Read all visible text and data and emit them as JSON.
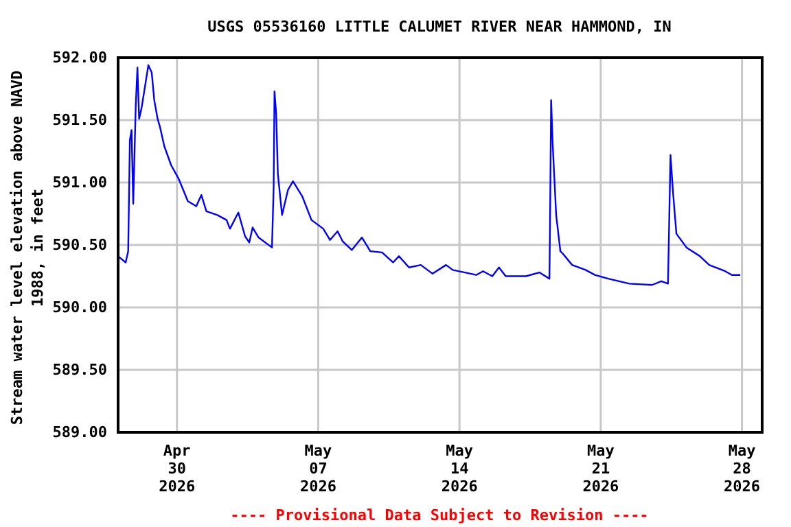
{
  "chart_data": {
    "type": "line",
    "title": "USGS 05536160 LITTLE CALUMET RIVER NEAR HAMMOND, IN",
    "ylabel": "Stream water level elevation above NAVD\n1988, in feet",
    "annotations": [
      "---- Provisional Data Subject to Revision ----"
    ],
    "xlim": [
      "2026-04-27T02:00",
      "2026-05-29T00:00"
    ],
    "xticks": [
      {
        "value": "2026-04-30",
        "label": "Apr\n30\n2026"
      },
      {
        "value": "2026-05-07",
        "label": "May\n07\n2026"
      },
      {
        "value": "2026-05-14",
        "label": "May\n14\n2026"
      },
      {
        "value": "2026-05-21",
        "label": "May\n21\n2026"
      },
      {
        "value": "2026-05-28",
        "label": "May\n28\n2026"
      }
    ],
    "ylim": [
      589,
      592
    ],
    "yticks": [
      {
        "value": 589,
        "label": "589.00"
      },
      {
        "value": 589.5,
        "label": "589.50"
      },
      {
        "value": 590,
        "label": "590.00"
      },
      {
        "value": 590.5,
        "label": "590.50"
      },
      {
        "value": 591,
        "label": "591.00"
      },
      {
        "value": 591.5,
        "label": "591.50"
      },
      {
        "value": 592,
        "label": "592.00"
      }
    ],
    "grid": true,
    "marker": "none",
    "line_style": "solid",
    "x": [
      "2026-04-27T02:00",
      "2026-04-27T11:00",
      "2026-04-27T14:00",
      "2026-04-27T16:00",
      "2026-04-27T18:00",
      "2026-04-27T20:00",
      "2026-04-27T23:00",
      "2026-04-28T01:00",
      "2026-04-28T03:00",
      "2026-04-28T06:00",
      "2026-04-28T10:00",
      "2026-04-28T14:00",
      "2026-04-28T18:00",
      "2026-04-28T21:00",
      "2026-04-29T01:00",
      "2026-04-29T04:00",
      "2026-04-29T09:00",
      "2026-04-29T17:00",
      "2026-04-30T02:00",
      "2026-04-30T13:00",
      "2026-04-30T23:00",
      "2026-05-01T05:00",
      "2026-05-01T11:00",
      "2026-05-02T00:00",
      "2026-05-02T11:00",
      "2026-05-02T15:00",
      "2026-05-03T01:00",
      "2026-05-03T09:00",
      "2026-05-03T14:00",
      "2026-05-03T18:00",
      "2026-05-04T01:00",
      "2026-05-04T17:00",
      "2026-05-04T19:00",
      "2026-05-04T20:00",
      "2026-05-04T22:00",
      "2026-05-05T00:00",
      "2026-05-05T05:00",
      "2026-05-05T12:00",
      "2026-05-05T18:00",
      "2026-05-06T05:00",
      "2026-05-06T16:00",
      "2026-05-07T06:00",
      "2026-05-07T14:00",
      "2026-05-07T23:00",
      "2026-05-08T05:00",
      "2026-05-08T16:00",
      "2026-05-09T04:00",
      "2026-05-09T14:00",
      "2026-05-10T04:00",
      "2026-05-10T17:00",
      "2026-05-11T00:00",
      "2026-05-11T12:00",
      "2026-05-12T02:00",
      "2026-05-12T16:00",
      "2026-05-13T08:00",
      "2026-05-13T16:00",
      "2026-05-14T20:00",
      "2026-05-15T04:00",
      "2026-05-15T15:00",
      "2026-05-15T23:00",
      "2026-05-16T07:00",
      "2026-05-17T07:00",
      "2026-05-17T23:00",
      "2026-05-18T11:00",
      "2026-05-18T11:30",
      "2026-05-18T13:00",
      "2026-05-18T15:00",
      "2026-05-18T19:00",
      "2026-05-19T00:00",
      "2026-05-19T03:00",
      "2026-05-19T14:00",
      "2026-05-20T06:00",
      "2026-05-20T17:00",
      "2026-05-21T09:00",
      "2026-05-22T10:00",
      "2026-05-23T13:00",
      "2026-05-24T00:00",
      "2026-05-24T08:00",
      "2026-05-24T10:00",
      "2026-05-24T11:00",
      "2026-05-24T14:00",
      "2026-05-24T18:00",
      "2026-05-25T06:00",
      "2026-05-25T22:00",
      "2026-05-26T09:00",
      "2026-05-27T04:00",
      "2026-05-27T12:00",
      "2026-05-27T22:00"
    ],
    "series": [
      {
        "color": "#0000ff",
        "values": [
          590.41,
          590.36,
          590.45,
          591.34,
          591.42,
          590.83,
          591.62,
          591.92,
          591.51,
          591.6,
          591.77,
          591.94,
          591.88,
          591.66,
          591.51,
          591.44,
          591.29,
          591.14,
          591.03,
          590.85,
          590.81,
          590.9,
          590.77,
          590.74,
          590.7,
          590.63,
          590.76,
          590.57,
          590.52,
          590.64,
          590.56,
          590.48,
          590.96,
          591.73,
          591.55,
          591.07,
          590.74,
          590.94,
          591.01,
          590.89,
          590.7,
          590.63,
          590.54,
          590.61,
          590.53,
          590.46,
          590.56,
          590.45,
          590.44,
          590.36,
          590.41,
          590.32,
          590.34,
          590.27,
          590.34,
          590.3,
          590.26,
          590.29,
          590.25,
          590.32,
          590.25,
          590.25,
          590.28,
          590.23,
          590.52,
          591.66,
          591.29,
          590.74,
          590.45,
          590.43,
          590.34,
          590.3,
          590.26,
          590.23,
          590.19,
          590.18,
          590.21,
          590.19,
          590.89,
          591.22,
          590.92,
          590.59,
          590.48,
          590.41,
          590.34,
          590.29,
          590.26,
          590.26
        ]
      }
    ]
  }
}
